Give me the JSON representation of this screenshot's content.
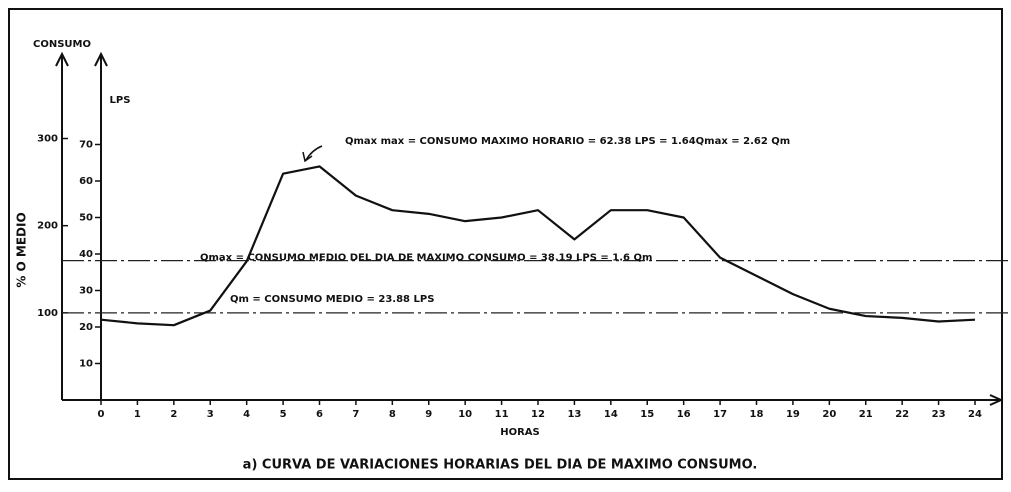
{
  "chart_data": {
    "type": "line",
    "title": "a) CURVA DE VARIACIONES HORARIAS DEL DIA DE MAXIMO CONSUMO.",
    "x_label": "HORAS",
    "y_label": "LPS",
    "y2_label": "% O MEDIO",
    "y2_title": "CONSUMO",
    "x": [
      0,
      1,
      2,
      3,
      4,
      5,
      6,
      7,
      8,
      9,
      10,
      11,
      12,
      13,
      14,
      15,
      16,
      17,
      18,
      19,
      20,
      21,
      22,
      23,
      24
    ],
    "xlim": [
      0,
      24
    ],
    "xticks": [
      0,
      1,
      2,
      3,
      4,
      5,
      6,
      7,
      8,
      9,
      10,
      11,
      12,
      13,
      14,
      15,
      16,
      17,
      18,
      19,
      20,
      21,
      22,
      23,
      24
    ],
    "ylim": [
      0,
      80
    ],
    "yticks": [
      10,
      20,
      30,
      40,
      50,
      60,
      70
    ],
    "y2lim": [
      0,
      335
    ],
    "y2ticks": [
      100,
      200,
      300
    ],
    "series": [
      {
        "color": "#111111",
        "values": [
          22,
          21,
          20.5,
          24.5,
          38,
          62,
          64,
          56,
          52,
          51,
          49,
          50,
          52,
          44,
          52,
          52,
          50,
          39,
          34,
          29,
          25,
          23,
          22.5,
          21.5,
          22
        ]
      }
    ],
    "reference_lines": [
      {
        "value": 38.19,
        "label": "Qmax = CONSUMO MEDIO DEL DIA DE MAXIMO CONSUMO = 38.19 LPS = 1.6 Qm"
      },
      {
        "value": 23.88,
        "label": "Qm = CONSUMO MEDIO = 23.88 LPS"
      }
    ],
    "annotations": [
      {
        "text": "Qmax max = CONSUMO MAXIMO HORARIO = 62.38 LPS = 1.64Qmax = 2.62 Qm"
      }
    ]
  }
}
